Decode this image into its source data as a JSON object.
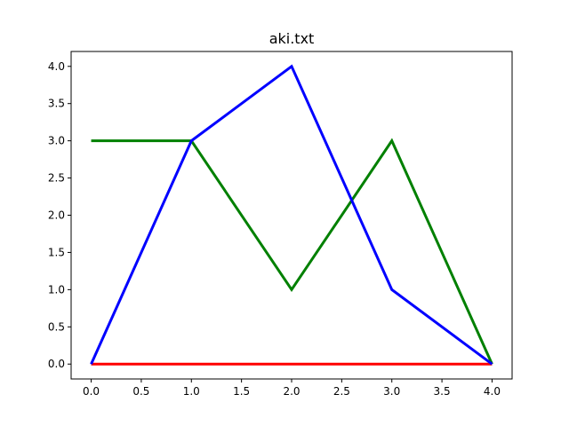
{
  "chart_data": {
    "type": "line",
    "title": "aki.txt",
    "xlabel": "",
    "ylabel": "",
    "xlim": [
      -0.2,
      4.2
    ],
    "ylim": [
      -0.2,
      4.2
    ],
    "xticks": [
      0.0,
      0.5,
      1.0,
      1.5,
      2.0,
      2.5,
      3.0,
      3.5,
      4.0
    ],
    "yticks": [
      0.0,
      0.5,
      1.0,
      1.5,
      2.0,
      2.5,
      3.0,
      3.5,
      4.0
    ],
    "xtick_labels": [
      "0.0",
      "0.5",
      "1.0",
      "1.5",
      "2.0",
      "2.5",
      "3.0",
      "3.5",
      "4.0"
    ],
    "ytick_labels": [
      "0.0",
      "0.5",
      "1.0",
      "1.5",
      "2.0",
      "2.5",
      "3.0",
      "3.5",
      "4.0"
    ],
    "grid": false,
    "x": [
      0,
      1,
      2,
      3,
      4
    ],
    "series": [
      {
        "color": "#ff0000",
        "values": [
          0,
          0,
          0,
          0,
          0
        ]
      },
      {
        "color": "#008000",
        "values": [
          3,
          3,
          1,
          3,
          0
        ]
      },
      {
        "color": "#0000ff",
        "values": [
          0,
          3,
          4,
          1,
          0
        ]
      }
    ]
  }
}
